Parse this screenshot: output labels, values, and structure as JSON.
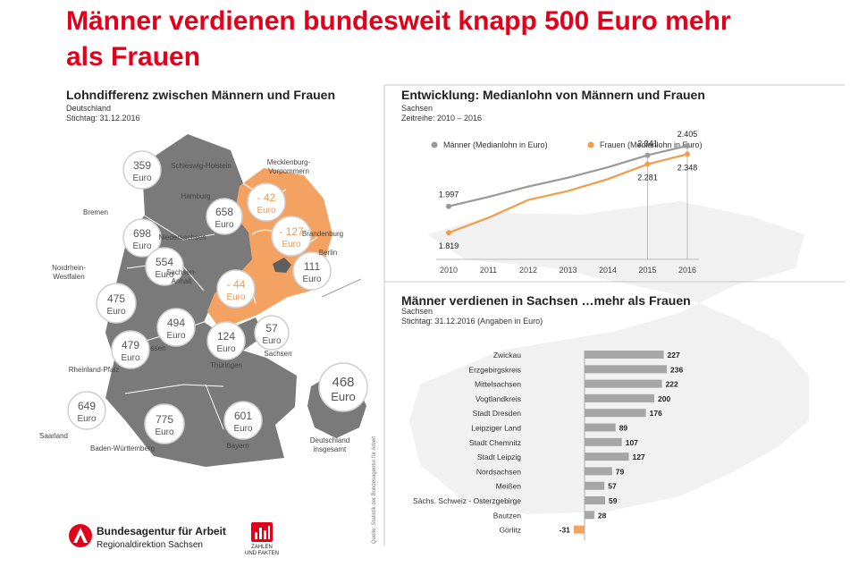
{
  "headline": "Männer verdienen bundesweit knapp 500 Euro mehr als Frauen",
  "map_section": {
    "title": "Lohndifferenz zwischen Männern und Frauen",
    "region": "Deutschland",
    "date": "Stichtag: 31.12.2016",
    "unit": "Euro",
    "colors": {
      "west": "#7a7a7a",
      "east": "#f4a261",
      "circle_text": "#555555",
      "east_text": "#f09a50"
    },
    "states": [
      {
        "name": "Schleswig-Holstein",
        "value": "359",
        "east": false
      },
      {
        "name": "Mecklenburg-Vorpommern",
        "value": "- 42",
        "east": true
      },
      {
        "name": "Hamburg",
        "value": "658",
        "east": false
      },
      {
        "name": "Bremen",
        "value": "698",
        "east": false
      },
      {
        "name": "Brandenburg",
        "value": "- 127",
        "east": true
      },
      {
        "name": "Niedersachsen",
        "value": "554",
        "east": false
      },
      {
        "name": "Berlin",
        "value": "111",
        "east": false
      },
      {
        "name": "Nordrhein-Westfalen",
        "value": "475",
        "east": false
      },
      {
        "name": "Sachsen-Anhalt",
        "value": "- 44",
        "east": true
      },
      {
        "name": "Hessen",
        "value": "494",
        "east": false
      },
      {
        "name": "Sachsen",
        "value": "57",
        "east": false
      },
      {
        "name": "Thüringen",
        "value": "124",
        "east": false
      },
      {
        "name": "Rheinland-Pfalz",
        "value": "479",
        "east": false
      },
      {
        "name": "Saarland",
        "value": "649",
        "east": false
      },
      {
        "name": "Baden-Württemberg",
        "value": "775",
        "east": false
      },
      {
        "name": "Bayern",
        "value": "601",
        "east": false
      },
      {
        "name": "Deutschland insgesamt",
        "value": "468",
        "east": false
      }
    ]
  },
  "line_section": {
    "title": "Entwicklung: Medianlohn von Männern und Frauen",
    "region": "Sachsen",
    "period": "Zeitreihe: 2010 – 2016"
  },
  "bar_section": {
    "title": "Männer verdienen in Sachsen …mehr als Frauen",
    "region": "Sachsen",
    "date": "Stichtag: 31.12.2016 (Angaben in Euro)"
  },
  "source_note": "Quelle: Statistik der Bundesagentur für Arbeit",
  "footer": {
    "agency_name": "Bundesagentur für Arbeit",
    "agency_sub": "Regionaldirektion Sachsen",
    "badge_text": "ZAHLEN UND FAKTEN",
    "brand_color": "#e2001a"
  },
  "chart_data": [
    {
      "type": "line",
      "title": "Entwicklung: Medianlohn von Männern und Frauen",
      "subtitle": "Sachsen, Zeitreihe: 2010 – 2016",
      "x": [
        2010,
        2011,
        2012,
        2013,
        2014,
        2015,
        2016
      ],
      "ylim": [
        1700,
        2500
      ],
      "grid": false,
      "legend": "top",
      "series": [
        {
          "name": "Männer (Medianlohn in Euro)",
          "color": "#999999",
          "values": [
            1997,
            2060,
            2130,
            2190,
            2260,
            2341,
            2405
          ],
          "labels": [
            "1.997",
            "",
            "",
            "",
            "",
            "2.341",
            "2.405"
          ]
        },
        {
          "name": "Frauen (Medianlohn in Euro)",
          "color": "#f39c4a",
          "values": [
            1819,
            1920,
            2040,
            2100,
            2180,
            2281,
            2348
          ],
          "labels": [
            "1.819",
            "",
            "",
            "",
            "",
            "2.281",
            "2.348"
          ]
        }
      ]
    },
    {
      "type": "bar",
      "orientation": "horizontal",
      "title": "Männer verdienen in Sachsen …mehr als Frauen",
      "subtitle": "Sachsen, Stichtag: 31.12.2016 (Angaben in Euro)",
      "categories": [
        "Zwickau",
        "Erzgebirgskreis",
        "Mittelsachsen",
        "Vogtlandkreis",
        "Stadt Dresden",
        "Leipziger Land",
        "Stadt Chemnitz",
        "Stadt Leipzig",
        "Nordsachsen",
        "Meißen",
        "Sächs. Schweiz - Osterzgebirge",
        "Bautzen",
        "Görlitz"
      ],
      "values": [
        227,
        236,
        222,
        200,
        176,
        89,
        107,
        127,
        79,
        57,
        59,
        28,
        -31
      ],
      "xlim": [
        -40,
        260
      ],
      "colors": {
        "positive": "#a6a6a6",
        "negative": "#f4a261"
      }
    }
  ]
}
